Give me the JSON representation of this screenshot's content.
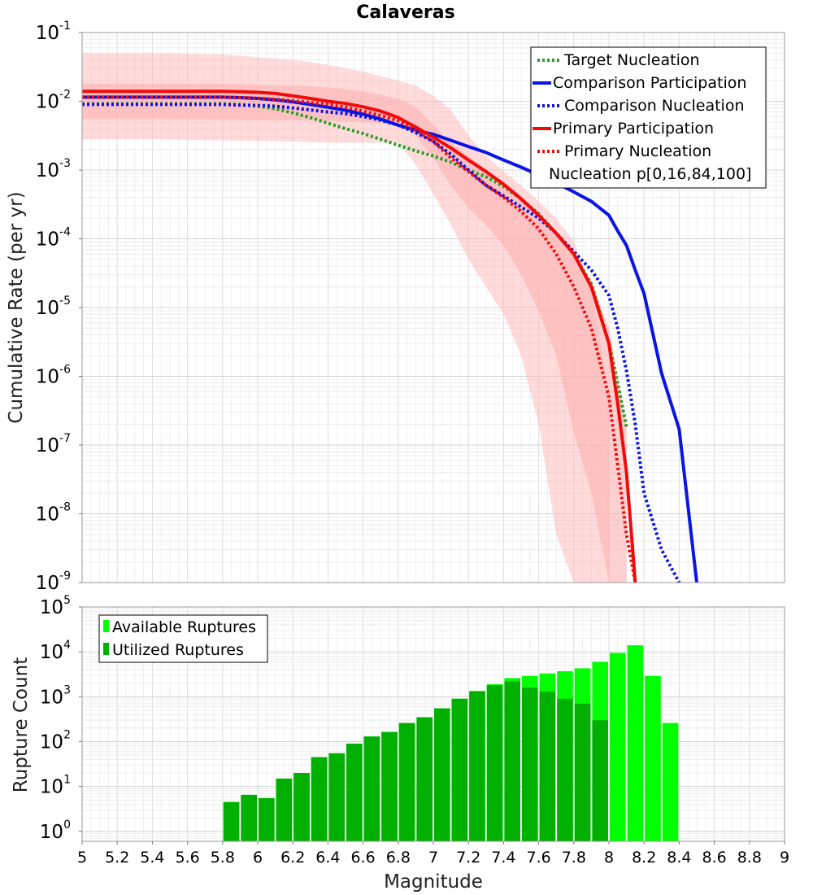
{
  "chart_data": [
    {
      "type": "line",
      "title": "Calaveras",
      "xlabel": "",
      "ylabel": "Cumulative Rate (per yr)",
      "xlim": [
        5,
        9
      ],
      "ylim": [
        1e-09,
        0.1
      ],
      "yscale": "log",
      "grid": true,
      "legend_position": "top-right",
      "yticks": [
        {
          "base": "10",
          "exp": "-9"
        },
        {
          "base": "10",
          "exp": "-8"
        },
        {
          "base": "10",
          "exp": "-7"
        },
        {
          "base": "10",
          "exp": "-6"
        },
        {
          "base": "10",
          "exp": "-5"
        },
        {
          "base": "10",
          "exp": "-4"
        },
        {
          "base": "10",
          "exp": "-3"
        },
        {
          "base": "10",
          "exp": "-2"
        },
        {
          "base": "10",
          "exp": "-1"
        }
      ],
      "x": [
        5.0,
        5.1,
        5.2,
        5.3,
        5.4,
        5.5,
        5.6,
        5.7,
        5.8,
        5.9,
        6.0,
        6.1,
        6.2,
        6.3,
        6.4,
        6.5,
        6.6,
        6.7,
        6.8,
        6.9,
        7.0,
        7.1,
        7.2,
        7.3,
        7.4,
        7.5,
        7.6,
        7.7,
        7.8,
        7.9,
        8.0,
        8.05,
        8.1,
        8.15,
        8.2,
        8.3,
        8.4,
        8.5
      ],
      "series": [
        {
          "name": "Target Nucleation",
          "color": "#22a022",
          "style": "dotted",
          "values": [
            0.0092,
            0.0092,
            0.0092,
            0.0092,
            0.0092,
            0.0092,
            0.0092,
            0.0092,
            0.0092,
            0.009,
            0.0085,
            0.0078,
            0.0068,
            0.0058,
            0.0048,
            0.004,
            0.0034,
            0.0028,
            0.0023,
            0.0019,
            0.0016,
            0.0013,
            0.001,
            0.0008,
            0.00058,
            0.00038,
            0.00023,
            0.00012,
            6e-05,
            2.2e-05,
            3e-06,
            8e-07,
            1.8e-07,
            null,
            null,
            null,
            null,
            null
          ]
        },
        {
          "name": "Comparison Participation",
          "color": "#0a14e6",
          "style": "solid",
          "values": [
            0.0115,
            0.0115,
            0.0115,
            0.0115,
            0.0115,
            0.0115,
            0.0115,
            0.0115,
            0.0115,
            0.0113,
            0.011,
            0.0105,
            0.0098,
            0.009,
            0.0082,
            0.0074,
            0.0065,
            0.0055,
            0.0045,
            0.0038,
            0.0033,
            0.0027,
            0.0022,
            0.0018,
            0.0014,
            0.0011,
            0.00085,
            0.00065,
            0.00048,
            0.00035,
            0.00022,
            0.00013,
            8e-05,
            3.5e-05,
            1.6e-05,
            1.1e-06,
            1.7e-07,
            1e-09
          ]
        },
        {
          "name": "Comparison Nucleation",
          "color": "#0a14e6",
          "style": "dotted",
          "values": [
            0.009,
            0.009,
            0.009,
            0.009,
            0.009,
            0.009,
            0.009,
            0.009,
            0.009,
            0.0088,
            0.0087,
            0.0085,
            0.008,
            0.0075,
            0.007,
            0.0066,
            0.006,
            0.0053,
            0.0045,
            0.0035,
            0.0026,
            0.0017,
            0.001,
            0.0006,
            0.00042,
            0.00029,
            0.0002,
            0.00012,
            6.5e-05,
            3.5e-05,
            1.5e-05,
            5e-06,
            1.2e-06,
            2e-07,
            2e-08,
            3e-09,
            1e-09,
            null
          ]
        },
        {
          "name": "Primary Participation",
          "color": "#f20a0a",
          "style": "solid",
          "values": [
            0.014,
            0.014,
            0.014,
            0.014,
            0.014,
            0.014,
            0.014,
            0.014,
            0.014,
            0.0138,
            0.0135,
            0.013,
            0.012,
            0.011,
            0.01,
            0.0093,
            0.0083,
            0.0072,
            0.0058,
            0.0042,
            0.003,
            0.0021,
            0.0014,
            0.00095,
            0.00062,
            0.00038,
            0.00022,
            0.00012,
            6e-05,
            2e-05,
            3e-06,
            4e-07,
            4e-08,
            1e-09,
            null,
            null,
            null,
            null
          ]
        },
        {
          "name": "Primary Nucleation",
          "color": "#f20a0a",
          "style": "dotted",
          "values": [
            0.0115,
            0.0115,
            0.0115,
            0.0115,
            0.0115,
            0.0115,
            0.0115,
            0.0115,
            0.0115,
            0.0113,
            0.0111,
            0.0107,
            0.0102,
            0.0096,
            0.009,
            0.0082,
            0.0072,
            0.0062,
            0.0052,
            0.0038,
            0.0026,
            0.0015,
            0.00095,
            0.0006,
            0.0004,
            0.00025,
            0.00014,
            6e-05,
            2e-05,
            5e-06,
            5e-07,
            5e-08,
            5e-09,
            1e-09,
            null,
            null,
            null,
            null
          ]
        }
      ],
      "band_label": "Nucleation p[0,16,84,100]",
      "band_color": "#ffb0b0",
      "band_outer": {
        "x": [
          5.0,
          5.4,
          5.8,
          6.2,
          6.4,
          6.6,
          6.8,
          6.9,
          7.0,
          7.1,
          7.2,
          7.3,
          7.4,
          7.5,
          7.6,
          7.7,
          7.8,
          7.9,
          8.0
        ],
        "upper": [
          0.05,
          0.05,
          0.048,
          0.04,
          0.034,
          0.027,
          0.02,
          0.017,
          0.012,
          0.0075,
          0.0032,
          0.0016,
          0.00095,
          0.0006,
          0.00035,
          0.0002,
          9e-05,
          2e-05,
          5e-07
        ],
        "lower": [
          0.0028,
          0.0028,
          0.0027,
          0.0026,
          0.0025,
          0.0025,
          0.0025,
          0.0012,
          0.00045,
          0.00016,
          5e-05,
          2e-05,
          8e-06,
          2e-06,
          2e-07,
          5e-09,
          1e-09,
          1e-09,
          1e-09
        ]
      },
      "band_inner": {
        "x": [
          5.0,
          5.4,
          5.8,
          6.2,
          6.4,
          6.6,
          6.8,
          6.9,
          7.0,
          7.1,
          7.2,
          7.3,
          7.4,
          7.5,
          7.6,
          7.7,
          7.8,
          7.9,
          8.0,
          8.05,
          8.1
        ],
        "upper": [
          0.018,
          0.018,
          0.018,
          0.017,
          0.016,
          0.014,
          0.011,
          0.0082,
          0.0045,
          0.0025,
          0.0016,
          0.001,
          0.0007,
          0.00042,
          0.00025,
          0.00012,
          5.5e-05,
          2.5e-05,
          5e-06,
          1e-06,
          2e-07
        ],
        "lower": [
          0.0055,
          0.0055,
          0.0054,
          0.0053,
          0.0052,
          0.005,
          0.0045,
          0.0032,
          0.0015,
          0.0006,
          0.00028,
          0.00016,
          8e-05,
          3e-05,
          9e-06,
          2e-06,
          1.5e-07,
          2e-08,
          1e-09,
          1e-09,
          1e-09
        ]
      }
    },
    {
      "type": "bar",
      "xlabel": "Magnitude",
      "ylabel": "Rupture Count",
      "xlim": [
        5,
        9
      ],
      "ylim": [
        0.6,
        100000
      ],
      "yscale": "log",
      "grid": true,
      "legend_position": "top-left",
      "xticks": [
        "5",
        "5.2",
        "5.4",
        "5.6",
        "5.8",
        "6",
        "6.2",
        "6.4",
        "6.6",
        "6.8",
        "7",
        "7.2",
        "7.4",
        "7.6",
        "7.8",
        "8",
        "8.2",
        "8.4",
        "8.6",
        "8.8",
        "9"
      ],
      "yticks": [
        {
          "base": "10",
          "exp": "0"
        },
        {
          "base": "10",
          "exp": "1"
        },
        {
          "base": "10",
          "exp": "2"
        },
        {
          "base": "10",
          "exp": "3"
        },
        {
          "base": "10",
          "exp": "4"
        },
        {
          "base": "10",
          "exp": "5"
        }
      ],
      "bin_width": 0.1,
      "bin_centers": [
        5.85,
        5.95,
        6.05,
        6.15,
        6.25,
        6.35,
        6.45,
        6.55,
        6.65,
        6.75,
        6.85,
        6.95,
        7.05,
        7.15,
        7.25,
        7.35,
        7.45,
        7.55,
        7.65,
        7.75,
        7.85,
        7.95,
        8.05,
        8.15,
        8.25,
        8.35
      ],
      "series": [
        {
          "name": "Available Ruptures",
          "color": "#00ff00",
          "values": [
            4.5,
            6.5,
            5.5,
            15,
            20,
            45,
            55,
            90,
            130,
            165,
            260,
            350,
            550,
            900,
            1350,
            1900,
            2600,
            2900,
            3300,
            3700,
            4300,
            6000,
            9500,
            14000,
            2900,
            260
          ]
        },
        {
          "name": "Utilized Ruptures",
          "color": "#00b000",
          "values": [
            4.5,
            6.5,
            5.5,
            15,
            20,
            45,
            55,
            90,
            130,
            165,
            260,
            350,
            550,
            900,
            1300,
            1800,
            2200,
            1600,
            1300,
            900,
            700,
            300,
            null,
            null,
            null,
            null
          ]
        }
      ]
    }
  ]
}
